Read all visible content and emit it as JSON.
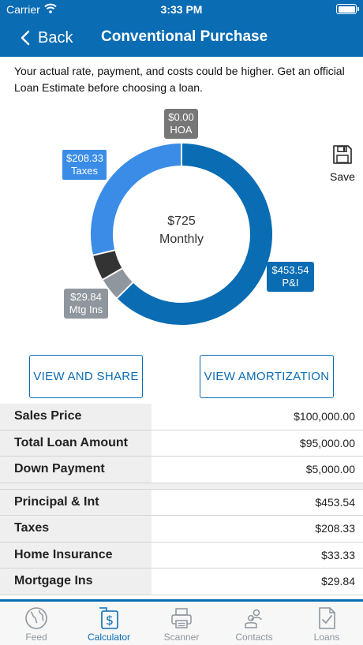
{
  "status": {
    "carrier": "Carrier",
    "time": "3:33 PM"
  },
  "nav": {
    "back_label": "Back",
    "title": "Conventional Purchase"
  },
  "disclaimer": "Your actual rate, payment, and costs could be higher. Get an official Loan Estimate before choosing a loan.",
  "chart_data": {
    "type": "pie",
    "variant": "donut",
    "center_value": "$725",
    "center_label": "Monthly",
    "slices": [
      {
        "name": "P&I",
        "value": 453.54,
        "label_value": "$453.54",
        "color": "#0a6cb3"
      },
      {
        "name": "Mtg Ins",
        "value": 29.84,
        "label_value": "$29.84",
        "color": "#8f969e"
      },
      {
        "name": "Home Insurance",
        "value": 33.33,
        "label_value": "",
        "color": "#333333"
      },
      {
        "name": "Taxes",
        "value": 208.33,
        "label_value": "$208.33",
        "color": "#3a8ce6"
      },
      {
        "name": "HOA",
        "value": 0.0,
        "label_value": "$0.00",
        "color": "#777777"
      }
    ]
  },
  "labels": {
    "hoa": {
      "value": "$0.00",
      "name": "HOA"
    },
    "taxes": {
      "value": "$208.33",
      "name": "Taxes"
    },
    "pi": {
      "value": "$453.54",
      "name": "P&I"
    },
    "mtg": {
      "value": "$29.84",
      "name": "Mtg Ins"
    }
  },
  "save_label": "Save",
  "buttons": {
    "share": "VIEW AND SHARE",
    "amortization": "VIEW AMORTIZATION"
  },
  "loan_rows": [
    {
      "label": "Sales Price",
      "value": "$100,000.00"
    },
    {
      "label": "Total Loan Amount",
      "value": "$95,000.00"
    },
    {
      "label": "Down Payment",
      "value": "$5,000.00"
    }
  ],
  "payment_rows": [
    {
      "label": "Principal & Int",
      "value": "$453.54"
    },
    {
      "label": "Taxes",
      "value": "$208.33"
    },
    {
      "label": "Home Insurance",
      "value": "$33.33"
    },
    {
      "label": "Mortgage Ins",
      "value": "$29.84"
    }
  ],
  "tabs": [
    {
      "label": "Feed",
      "icon": "globe-icon",
      "active": false
    },
    {
      "label": "Calculator",
      "icon": "calculator-icon",
      "active": true
    },
    {
      "label": "Scanner",
      "icon": "printer-icon",
      "active": false
    },
    {
      "label": "Contacts",
      "icon": "contacts-icon",
      "active": false
    },
    {
      "label": "Loans",
      "icon": "document-icon",
      "active": false
    }
  ],
  "colors": {
    "primary": "#0a6cb3",
    "taxes": "#3a8ce6",
    "muted": "#8f969e"
  }
}
